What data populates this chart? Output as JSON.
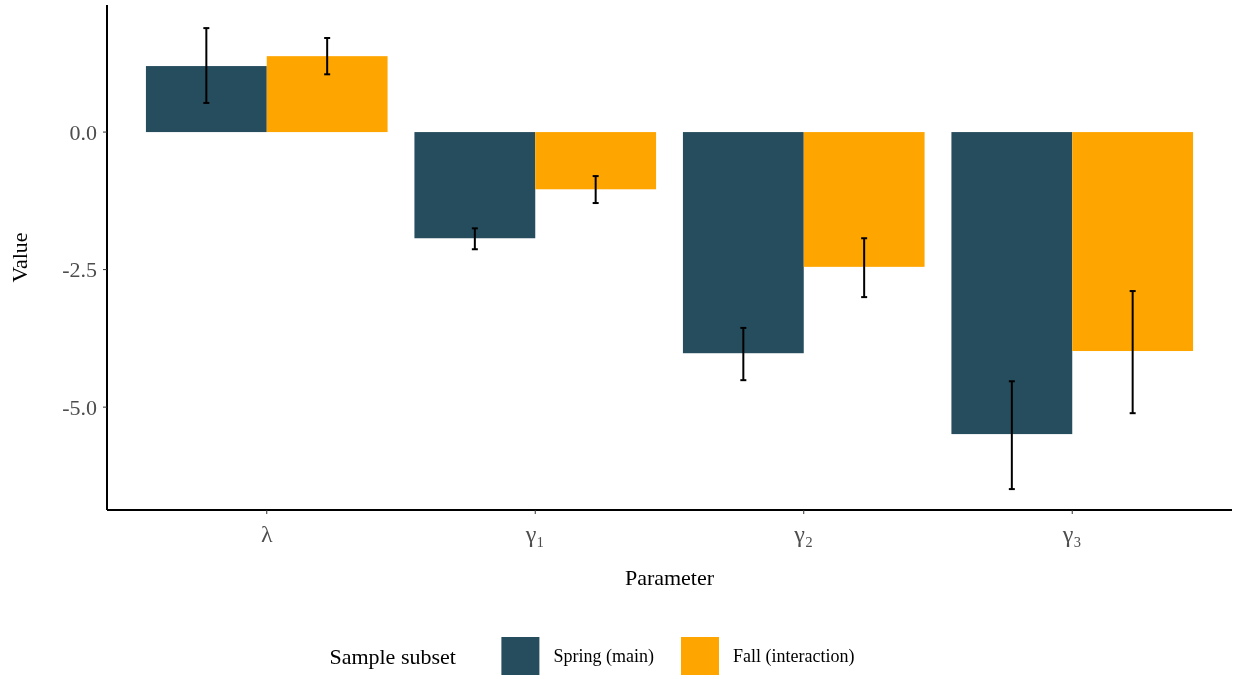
{
  "chart_data": {
    "type": "bar",
    "xlabel": "Parameter",
    "ylabel": "Value",
    "legend_title": "Sample subset",
    "legend": "bottom",
    "grid": false,
    "categories": [
      "λ",
      "γ₁",
      "γ₂",
      "γ₃"
    ],
    "ylim": [
      -6.87,
      2.31
    ],
    "yticks": [
      {
        "value": 0,
        "label": "0.0"
      },
      {
        "value": -2.5,
        "label": "-2.5"
      },
      {
        "value": -5,
        "label": "-5.0"
      }
    ],
    "series": [
      {
        "name": "Spring (main)",
        "color": "#264d5e",
        "values": [
          1.2,
          -1.93,
          -4.02,
          -5.49
        ],
        "errors": [
          [
            0.53,
            1.89
          ],
          [
            -2.13,
            -1.75
          ],
          [
            -4.51,
            -3.56
          ],
          [
            -6.49,
            -4.53
          ]
        ]
      },
      {
        "name": "Fall (interaction)",
        "color": "#ffa500",
        "values": [
          1.38,
          -1.04,
          -2.45,
          -3.98
        ],
        "errors": [
          [
            1.05,
            1.71
          ],
          [
            -1.29,
            -0.8
          ],
          [
            -3.0,
            -1.93
          ],
          [
            -5.11,
            -2.89
          ]
        ]
      }
    ]
  }
}
